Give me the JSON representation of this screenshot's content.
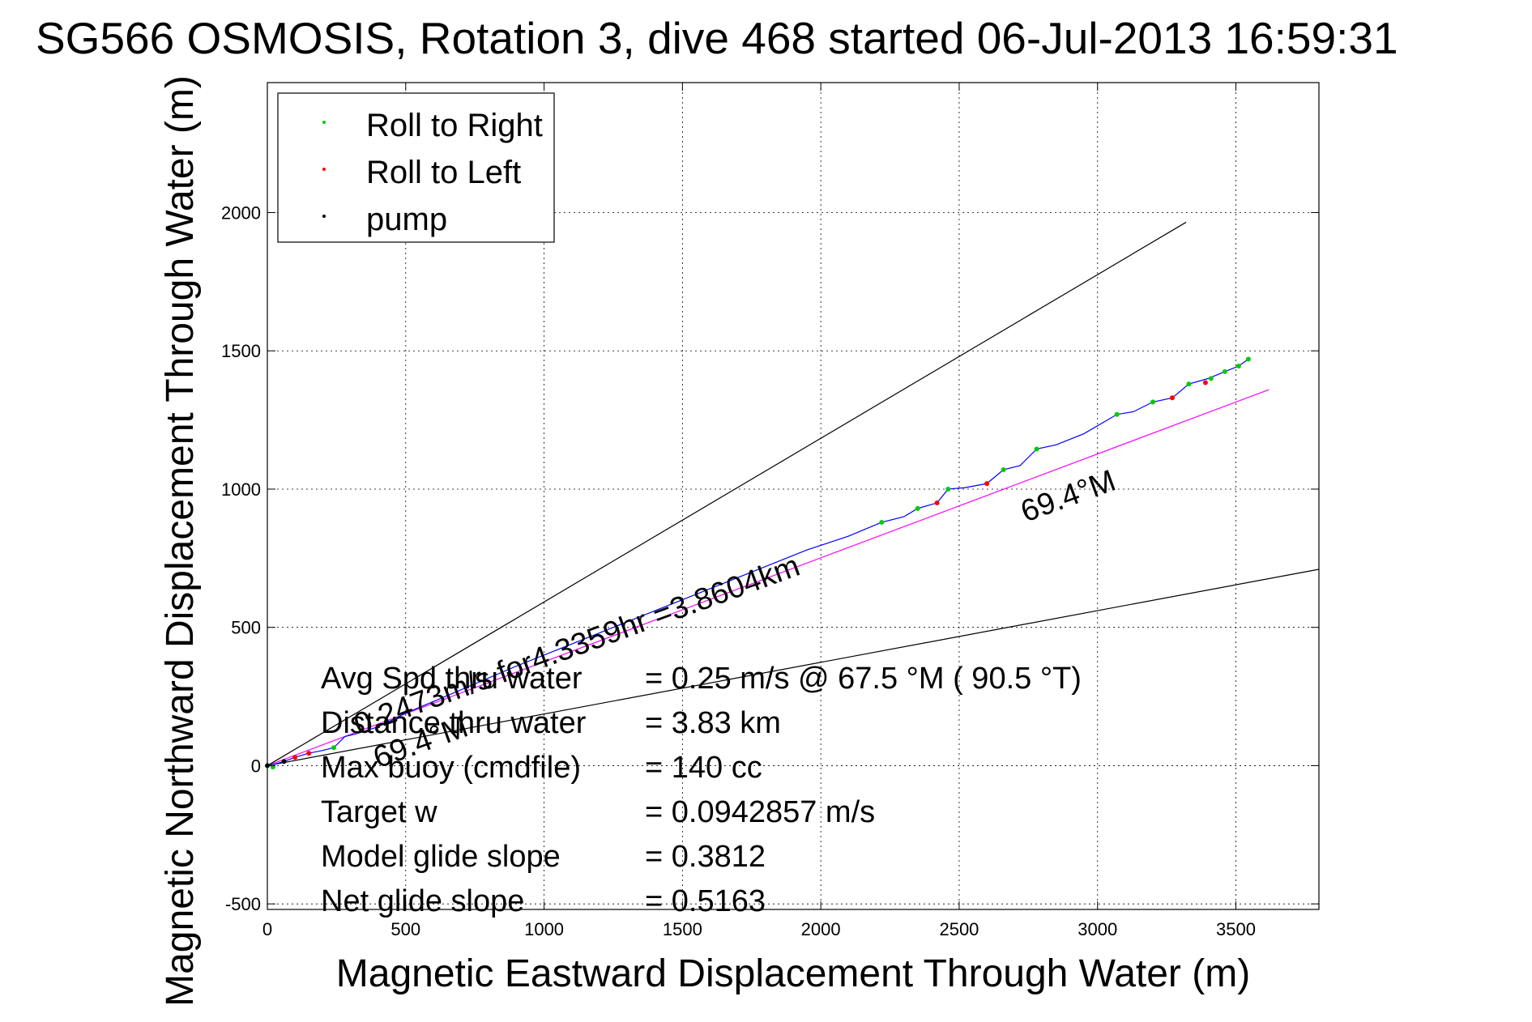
{
  "chart_data": {
    "type": "line",
    "title": "SG566 OSMOSIS, Rotation 3, dive 468 started 06-Jul-2013 16:59:31",
    "xlabel": "Magnetic Eastward Displacement Through Water (m)",
    "ylabel": "Magnetic Northward Displacement Through Water (m)",
    "xlim": [
      0,
      3800
    ],
    "ylim": [
      -520,
      2470
    ],
    "x_ticks": [
      0,
      500,
      1000,
      1500,
      2000,
      2500,
      3000,
      3500
    ],
    "y_ticks": [
      -500,
      0,
      500,
      1000,
      1500,
      2000
    ],
    "x_tick_labels": [
      "0",
      "500",
      "1000",
      "1500",
      "2000",
      "2500",
      "3000",
      "3500"
    ],
    "y_tick_labels": [
      "-500",
      "0",
      "500",
      "1000",
      "1500",
      "2000"
    ],
    "grid": true,
    "legend_position": "top-left",
    "legend": [
      {
        "label": "Roll to Right",
        "color": "#00cc00"
      },
      {
        "label": "Roll to Left",
        "color": "#ff0000"
      },
      {
        "label": "pump",
        "color": "#000000"
      }
    ],
    "series": [
      {
        "name": "track",
        "color": "#0000ff",
        "x": [
          0,
          25,
          60,
          100,
          150,
          200,
          240,
          280,
          320,
          400,
          500,
          620,
          760,
          900,
          1050,
          1200,
          1350,
          1500,
          1650,
          1800,
          1950,
          2100,
          2220,
          2300,
          2350,
          2420,
          2460,
          2520,
          2600,
          2660,
          2720,
          2780,
          2850,
          2950,
          3070,
          3130,
          3200,
          3270,
          3330,
          3400,
          3460,
          3510,
          3545
        ],
        "y": [
          0,
          5,
          15,
          30,
          45,
          55,
          65,
          105,
          115,
          140,
          190,
          240,
          300,
          360,
          420,
          480,
          540,
          600,
          660,
          720,
          780,
          830,
          880,
          900,
          930,
          950,
          1000,
          1005,
          1020,
          1070,
          1085,
          1145,
          1160,
          1200,
          1270,
          1280,
          1315,
          1330,
          1380,
          1400,
          1425,
          1445,
          1470
        ]
      },
      {
        "name": "Roll to Right",
        "type": "scatter",
        "color": "#00cc00",
        "x": [
          20,
          240,
          2220,
          2350,
          2460,
          2660,
          2780,
          3070,
          3200,
          3330,
          3410,
          3460,
          3510,
          3545
        ],
        "y": [
          -5,
          65,
          880,
          930,
          1000,
          1070,
          1145,
          1270,
          1315,
          1380,
          1400,
          1425,
          1445,
          1470
        ]
      },
      {
        "name": "Roll to Left",
        "type": "scatter",
        "color": "#ff0000",
        "x": [
          100,
          150,
          2420,
          2600,
          3270,
          3390
        ],
        "y": [
          30,
          45,
          950,
          1020,
          1330,
          1385
        ]
      },
      {
        "name": "pump",
        "type": "scatter",
        "color": "#000000",
        "x": [
          0,
          60
        ],
        "y": [
          0,
          15
        ]
      }
    ],
    "reference_lines": [
      {
        "color": "#ff00ff",
        "x": [
          0,
          3620
        ],
        "y": [
          0,
          1360
        ]
      },
      {
        "color": "#000000",
        "x": [
          0,
          3320
        ],
        "y": [
          0,
          1965
        ]
      },
      {
        "color": "#000000",
        "x": [
          0,
          3800
        ],
        "y": [
          0,
          710
        ]
      }
    ],
    "annotations": [
      {
        "text": "69.4°M",
        "x": 2740,
        "y": 880,
        "rotate": -20
      },
      {
        "text": "0.2473m/s for4.3359hr =3.8604km",
        "x": 330,
        "y": 110,
        "rotate": -20
      },
      {
        "text": "69.4°M",
        "x": 400,
        "y": -10,
        "rotate": -20
      }
    ],
    "stats": [
      {
        "label": "Avg Spd thru water",
        "value": "=  0.25 m/s @  67.5 °M ( 90.5 °T)"
      },
      {
        "label": "Distance thru water",
        "value": "=  3.83 km"
      },
      {
        "label": "Max buoy (cmdfile)",
        "value": "= 140 cc"
      },
      {
        "label": "Target w",
        "value": "= 0.0942857 m/s"
      },
      {
        "label": "Model glide slope",
        "value": "= 0.3812"
      },
      {
        "label": "Net glide slope",
        "value": "= 0.5163"
      }
    ]
  }
}
